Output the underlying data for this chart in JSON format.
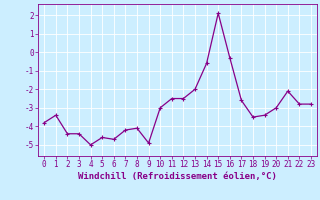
{
  "x": [
    0,
    1,
    2,
    3,
    4,
    5,
    6,
    7,
    8,
    9,
    10,
    11,
    12,
    13,
    14,
    15,
    16,
    17,
    18,
    19,
    20,
    21,
    22,
    23
  ],
  "y": [
    -3.8,
    -3.4,
    -4.4,
    -4.4,
    -5.0,
    -4.6,
    -4.7,
    -4.2,
    -4.1,
    -4.9,
    -3.0,
    -2.5,
    -2.5,
    -2.0,
    -0.6,
    2.1,
    -0.3,
    -2.6,
    -3.5,
    -3.4,
    -3.0,
    -2.1,
    -2.8,
    -2.8
  ],
  "line_color": "#880088",
  "marker": "+",
  "marker_size": 3,
  "linewidth": 0.9,
  "bg_color": "#cceeff",
  "grid_color": "#ffffff",
  "xlabel": "Windchill (Refroidissement éolien,°C)",
  "xlabel_color": "#880088",
  "tick_color": "#880088",
  "ylabel_ticks": [
    2,
    1,
    0,
    -1,
    -2,
    -3,
    -4,
    -5
  ],
  "ylim": [
    -5.6,
    2.6
  ],
  "xlim": [
    -0.5,
    23.5
  ],
  "tick_fontsize": 5.5,
  "label_fontsize": 6.5
}
